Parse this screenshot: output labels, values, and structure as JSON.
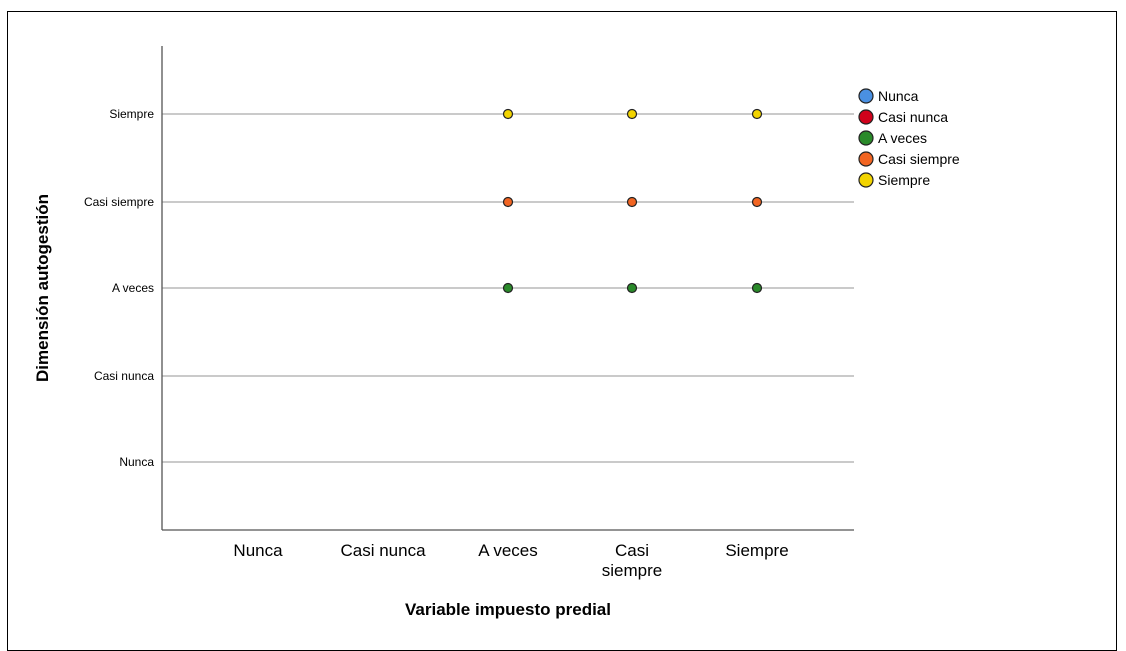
{
  "chart_data": {
    "type": "scatter",
    "title": "",
    "xlabel": "Variable impuesto predial",
    "ylabel": "Dimensión autogestión",
    "x_categories": [
      "Nunca",
      "Casi nunca",
      "A veces",
      "Casi siempre",
      "Siempre"
    ],
    "y_categories": [
      "Nunca",
      "Casi nunca",
      "A veces",
      "Casi siempre",
      "Siempre"
    ],
    "grid": "horizontal",
    "legend_position": "right",
    "legend": [
      {
        "name": "Nunca",
        "color": "#4a90e2"
      },
      {
        "name": "Casi nunca",
        "color": "#d0021b"
      },
      {
        "name": "A veces",
        "color": "#2a8a2a"
      },
      {
        "name": "Casi siempre",
        "color": "#f26522"
      },
      {
        "name": "Siempre",
        "color": "#f2d400"
      }
    ],
    "series": [
      {
        "name": "A veces",
        "color": "#2a8a2a",
        "points": [
          {
            "x": "A veces",
            "y": "A veces"
          },
          {
            "x": "Casi siempre",
            "y": "A veces"
          },
          {
            "x": "Siempre",
            "y": "A veces"
          }
        ]
      },
      {
        "name": "Casi siempre",
        "color": "#f26522",
        "points": [
          {
            "x": "A veces",
            "y": "Casi siempre"
          },
          {
            "x": "Casi siempre",
            "y": "Casi siempre"
          },
          {
            "x": "Siempre",
            "y": "Casi siempre"
          }
        ]
      },
      {
        "name": "Siempre",
        "color": "#f2d400",
        "points": [
          {
            "x": "A veces",
            "y": "Siempre"
          },
          {
            "x": "Casi siempre",
            "y": "Siempre"
          },
          {
            "x": "Siempre",
            "y": "Siempre"
          }
        ]
      }
    ]
  }
}
